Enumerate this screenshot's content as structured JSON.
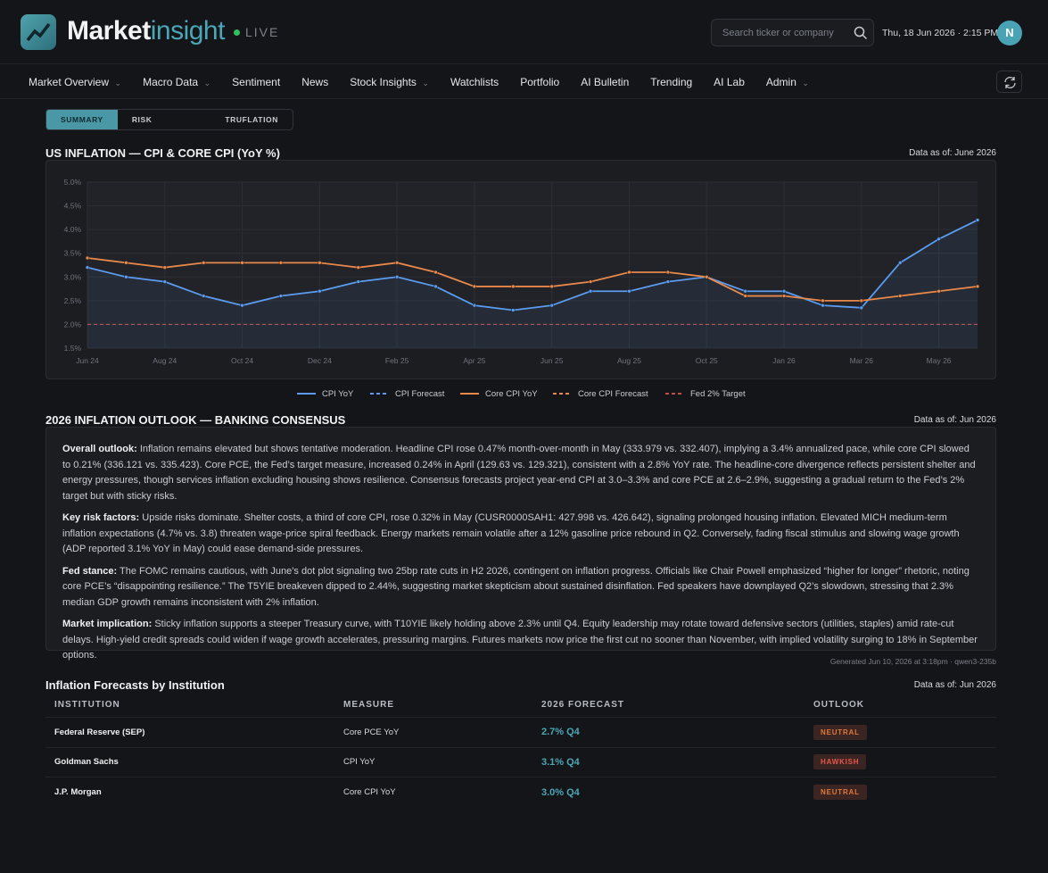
{
  "header": {
    "brand_main": "Market",
    "brand_accent": "insight",
    "live": "LIVE",
    "search_placeholder": "Search ticker or company",
    "datetime": "Thu, 18 Jun 2026 · 2:15 PM",
    "avatar": "N"
  },
  "nav": [
    "Market Overview",
    "Macro Data",
    "Sentiment",
    "News",
    "Stock Insights",
    "Watchlists",
    "Portfolio",
    "AI Bulletin",
    "Trending",
    "AI Lab",
    "Admin"
  ],
  "tabs": [
    "SUMMARY",
    "RISK DASHBOARD",
    "TRUFLATION"
  ],
  "inflation_chart": {
    "type": "line",
    "title": "US INFLATION — CPI & CORE CPI (YoY %)",
    "as_of": "Data as of: June 2026",
    "categories": [
      "Jun 24",
      null,
      "Aug 24",
      null,
      "Oct 24",
      null,
      "Dec 24",
      null,
      "Feb 25",
      null,
      "Apr 25",
      null,
      "Jun 25",
      null,
      "Aug 25",
      null,
      "Oct 25",
      null,
      "Jan 26",
      null,
      "Mar 26",
      null,
      "May 26",
      null
    ],
    "ylim": [
      1.5,
      5.0
    ],
    "yticks": [
      {
        "value": 1.5,
        "label": "1.5%"
      },
      {
        "value": 2.0,
        "label": "2.0%"
      },
      {
        "value": 2.5,
        "label": "2.5%"
      },
      {
        "value": 3.0,
        "label": "3.0%"
      },
      {
        "value": 3.5,
        "label": "3.5%"
      },
      {
        "value": 4.0,
        "label": "4.0%"
      },
      {
        "value": 4.5,
        "label": "4.5%"
      },
      {
        "value": 5.0,
        "label": "5.0%"
      }
    ],
    "grid": true,
    "series": [
      {
        "name": "CPI YoY",
        "color": "#5b9cf0",
        "dash": false,
        "fill": true,
        "values": [
          3.2,
          3.0,
          2.9,
          2.6,
          2.4,
          2.6,
          2.7,
          2.9,
          3.0,
          2.8,
          2.4,
          2.3,
          2.4,
          2.7,
          2.7,
          2.9,
          3.0,
          2.7,
          2.7,
          2.4,
          2.35,
          3.3,
          3.8,
          4.2
        ]
      },
      {
        "name": "CPI Forecast",
        "color": "#5b9cf0",
        "dash": true,
        "fill": false,
        "values": [
          null,
          null,
          null,
          null,
          null,
          null,
          null,
          null,
          null,
          null,
          null,
          null,
          null,
          null,
          null,
          null,
          null,
          null,
          null,
          null,
          null,
          null,
          null,
          null
        ]
      },
      {
        "name": "Core CPI YoY",
        "color": "#e8884a",
        "dash": false,
        "fill": false,
        "values": [
          3.4,
          3.3,
          3.2,
          3.3,
          3.3,
          3.3,
          3.3,
          3.2,
          3.3,
          3.1,
          2.8,
          2.8,
          2.8,
          2.9,
          3.1,
          3.1,
          3.0,
          2.6,
          2.6,
          2.5,
          2.5,
          2.6,
          2.7,
          2.8
        ]
      },
      {
        "name": "Core CPI Forecast",
        "color": "#e8884a",
        "dash": true,
        "fill": false,
        "values": [
          null,
          null,
          null,
          null,
          null,
          null,
          null,
          null,
          null,
          null,
          null,
          null,
          null,
          null,
          null,
          null,
          null,
          null,
          null,
          null,
          null,
          null,
          null,
          null
        ]
      }
    ],
    "target": {
      "name": "Fed 2% Target",
      "color": "#c0504d",
      "value": 2.0
    }
  },
  "outlook": {
    "title": "2026 INFLATION OUTLOOK — BANKING CONSENSUS",
    "as_of": "Data as of: Jun 2026",
    "paragraphs": [
      {
        "label": "Overall outlook:",
        "text": "Inflation remains elevated but shows tentative moderation. Headline CPI rose 0.47% month-over-month in May (333.979 vs. 332.407), implying a 3.4% annualized pace, while core CPI slowed to 0.21% (336.121 vs. 335.423). Core PCE, the Fed’s target measure, increased 0.24% in April (129.63 vs. 129.321), consistent with a 2.8% YoY rate. The headline-core divergence reflects persistent shelter and energy pressures, though services inflation excluding housing shows resilience. Consensus forecasts project year-end CPI at 3.0–3.3% and core PCE at 2.6–2.9%, suggesting a gradual return to the Fed’s 2% target but with sticky risks."
      },
      {
        "label": "Key risk factors:",
        "text": "Upside risks dominate. Shelter costs, a third of core CPI, rose 0.32% in May (CUSR0000SAH1: 427.998 vs. 426.642), signaling prolonged housing inflation. Elevated MICH medium-term inflation expectations (4.7% vs. 3.8) threaten wage-price spiral feedback. Energy markets remain volatile after a 12% gasoline price rebound in Q2. Conversely, fading fiscal stimulus and slowing wage growth (ADP reported 3.1% YoY in May) could ease demand-side pressures."
      },
      {
        "label": "Fed stance:",
        "text": "The FOMC remains cautious, with June’s dot plot signaling two 25bp rate cuts in H2 2026, contingent on inflation progress. Officials like Chair Powell emphasized “higher for longer” rhetoric, noting core PCE’s “disappointing resilience.” The T5YIE breakeven dipped to 2.44%, suggesting market skepticism about sustained disinflation. Fed speakers have downplayed Q2’s slowdown, stressing that 2.3% median GDP growth remains inconsistent with 2% inflation."
      },
      {
        "label": "Market implication:",
        "text": "Sticky inflation supports a steeper Treasury curve, with T10YIE likely holding above 2.3% until Q4. Equity leadership may rotate toward defensive sectors (utilities, staples) amid rate-cut delays. High-yield credit spreads could widen if wage growth accelerates, pressuring margins. Futures markets now price the first cut no sooner than November, with implied volatility surging to 18% in September options."
      }
    ],
    "generated": "Generated Jun 10, 2026 at 3:18pm · qwen3-235b"
  },
  "forecasts": {
    "title": "Inflation Forecasts by Institution",
    "as_of": "Data as of: Jun 2026",
    "columns": [
      "INSTITUTION",
      "MEASURE",
      "2026 FORECAST",
      "OUTLOOK"
    ],
    "rows": [
      [
        "Federal Reserve (SEP)",
        "Core PCE YoY",
        "2.7% Q4",
        "NEUTRAL"
      ],
      [
        "Goldman Sachs",
        "CPI YoY",
        "3.1% Q4",
        "HAWKISH"
      ],
      [
        "J.P. Morgan",
        "Core CPI YoY",
        "3.0% Q4",
        "NEUTRAL"
      ]
    ]
  }
}
